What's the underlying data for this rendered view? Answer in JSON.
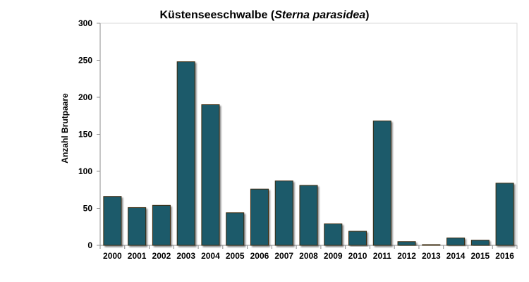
{
  "chart_data": {
    "type": "bar",
    "title_main": "Küstenseeschwalbe (",
    "title_italic": "Sterna parasidea",
    "title_close": ")",
    "xlabel": "",
    "ylabel": "Anzahl Brutpaare",
    "categories": [
      "2000",
      "2001",
      "2002",
      "2003",
      "2004",
      "2005",
      "2006",
      "2007",
      "2008",
      "2009",
      "2010",
      "2011",
      "2012",
      "2013",
      "2014",
      "2015",
      "2016"
    ],
    "values": [
      66,
      51,
      54,
      248,
      190,
      44,
      76,
      87,
      81,
      29,
      19,
      168,
      5,
      1,
      10,
      7,
      84
    ],
    "ylim": [
      0,
      300
    ],
    "yticks": [
      "0",
      "50",
      "100",
      "150",
      "200",
      "250",
      "300"
    ],
    "grid": false,
    "legend": "none",
    "bar_color": "#1f5a6b",
    "bar_edge_color": "#3a2a10",
    "plot_background": "#ffffff",
    "plot_border_color": "#d9d9d9",
    "axis_color": "#8c8c8c"
  }
}
